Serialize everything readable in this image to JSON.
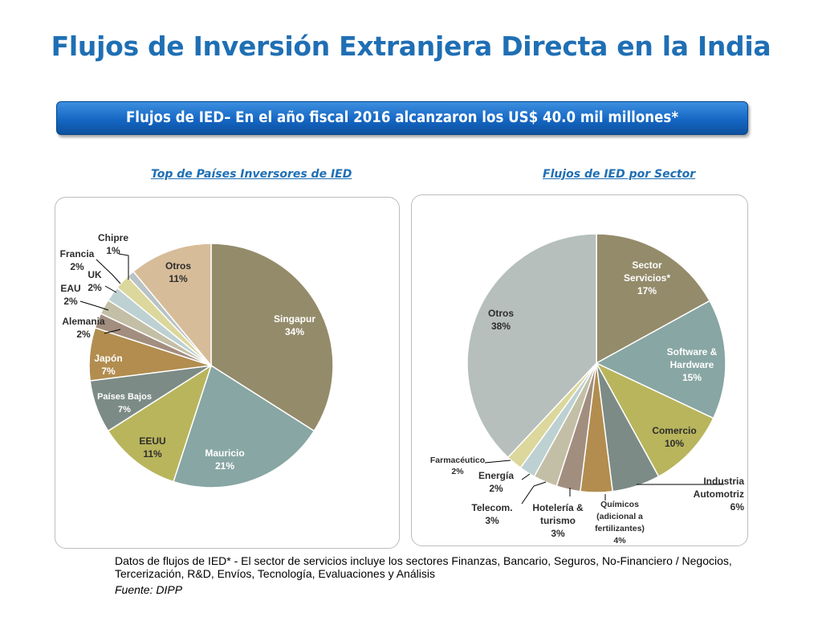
{
  "title": "Flujos de Inversión Extranjera Directa en la India",
  "banner": "Flujos de IED– En el año fiscal 2016 alcanzaron los US$ 40.0 mil millones*",
  "note": "Datos de flujos de IED* - El  sector de servicios incluye los sectores Finanzas, Bancario, Seguros, No-Financiero / Negocios, Tercerización, R&D, Envíos, Tecnología, Evaluaciones y Análisis",
  "source": "Fuente: DIPP",
  "chart_data": [
    {
      "type": "pie",
      "title": "Top de Países Inversores de IED",
      "slices": [
        {
          "label": "Singapur",
          "value": 34,
          "color": "#948b6b"
        },
        {
          "label": "Mauricio",
          "value": 21,
          "color": "#88a6a3"
        },
        {
          "label": "EEUU",
          "value": 11,
          "color": "#b9b55c"
        },
        {
          "label": "Países Bajos",
          "value": 7,
          "color": "#7c8b86"
        },
        {
          "label": "Japón",
          "value": 7,
          "color": "#b28d4f"
        },
        {
          "label": "Alemania",
          "value": 2,
          "color": "#a28e7f"
        },
        {
          "label": "EAU",
          "value": 2,
          "color": "#c3bfa6"
        },
        {
          "label": "UK",
          "value": 2,
          "color": "#bdd0d2"
        },
        {
          "label": "Francia",
          "value": 2,
          "color": "#dcd79c"
        },
        {
          "label": "Chipre",
          "value": 1,
          "color": "#b9c2c4"
        },
        {
          "label": "Otros",
          "value": 11,
          "color": "#d7bc99"
        }
      ]
    },
    {
      "type": "pie",
      "title": "Flujos de IED por Sector",
      "slices": [
        {
          "label": "Sector Servicios*",
          "value": 17,
          "color": "#948b6b"
        },
        {
          "label": "Software & Hardware",
          "value": 15,
          "color": "#88a6a3"
        },
        {
          "label": "Comercio",
          "value": 10,
          "color": "#b9b55c"
        },
        {
          "label": "Industria Automotriz",
          "value": 6,
          "color": "#7c8b86"
        },
        {
          "label": "Químicos (adicional a fertilizantes)",
          "value": 4,
          "color": "#b28d4f"
        },
        {
          "label": "Hotelería & turismo",
          "value": 3,
          "color": "#a28e7f"
        },
        {
          "label": "Telecom.",
          "value": 3,
          "color": "#c3bfa6"
        },
        {
          "label": "Energía",
          "value": 2,
          "color": "#bdd0d2"
        },
        {
          "label": "Farmacéutico",
          "value": 2,
          "color": "#dcd79c"
        },
        {
          "label": "Otros",
          "value": 38,
          "color": "#b6bfbc"
        }
      ]
    }
  ]
}
